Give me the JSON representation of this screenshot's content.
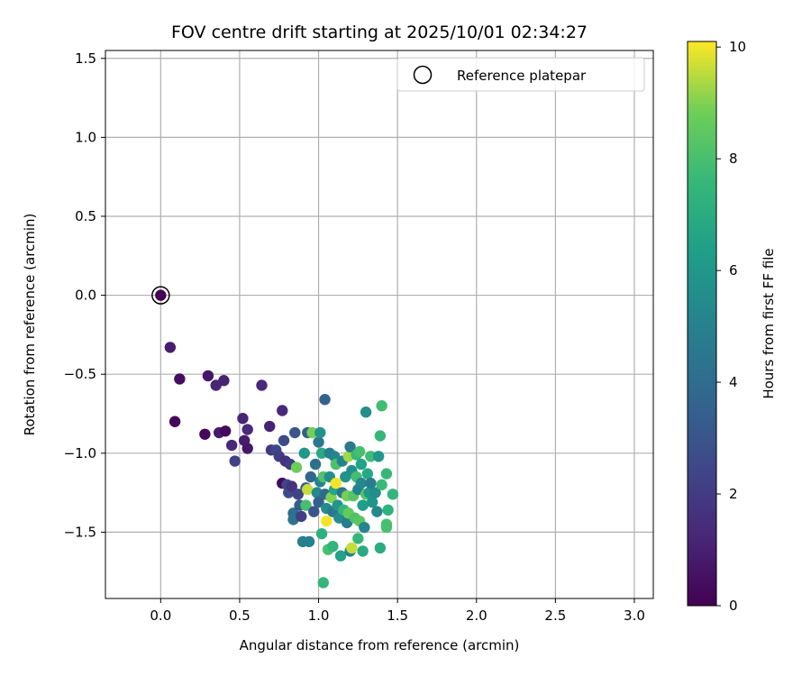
{
  "chart_data": {
    "type": "scatter",
    "title": "FOV centre drift starting at 2025/10/01 02:34:27",
    "xlabel": "Angular distance from reference (arcmin)",
    "ylabel": "Rotation from reference (arcmin)",
    "xlim": [
      -0.35,
      3.12
    ],
    "ylim": [
      -1.92,
      1.55
    ],
    "xticks": [
      0.0,
      0.5,
      1.0,
      1.5,
      2.0,
      2.5,
      3.0
    ],
    "xtick_labels": [
      "0.0",
      "0.5",
      "1.0",
      "1.5",
      "2.0",
      "2.5",
      "3.0"
    ],
    "yticks": [
      -1.5,
      -1.0,
      -0.5,
      0.0,
      0.5,
      1.0,
      1.5
    ],
    "ytick_labels": [
      "−1.5",
      "−1.0",
      "−0.5",
      "0.0",
      "0.5",
      "1.0",
      "1.5"
    ],
    "grid": true,
    "legend": {
      "position": "top-right",
      "entries": [
        "Reference platepar"
      ]
    },
    "colorbar": {
      "label": "Hours from first FF file",
      "range": [
        0,
        10.1
      ],
      "ticks": [
        0,
        2,
        4,
        6,
        8,
        10
      ],
      "tick_labels": [
        "0",
        "2",
        "4",
        "6",
        "8",
        "10"
      ],
      "colormap": "viridis"
    },
    "reference_point": {
      "x": 0.0,
      "y": 0.0,
      "hours": 0.0
    },
    "points": [
      [
        0.0,
        0.0,
        0.0
      ],
      [
        0.06,
        -0.33,
        0.9
      ],
      [
        0.09,
        -0.8,
        0.2
      ],
      [
        0.12,
        -0.53,
        0.4
      ],
      [
        0.28,
        -0.88,
        0.2
      ],
      [
        0.3,
        -0.51,
        0.7
      ],
      [
        0.35,
        -0.57,
        1.2
      ],
      [
        0.37,
        -0.87,
        0.8
      ],
      [
        0.4,
        -0.54,
        1.1
      ],
      [
        0.41,
        -0.86,
        0.3
      ],
      [
        0.45,
        -0.95,
        1.3
      ],
      [
        0.47,
        -1.05,
        2.2
      ],
      [
        0.52,
        -0.78,
        1.2
      ],
      [
        0.53,
        -0.92,
        0.9
      ],
      [
        0.55,
        -0.85,
        1.4
      ],
      [
        0.55,
        -0.97,
        0.7
      ],
      [
        0.64,
        -0.57,
        1.3
      ],
      [
        0.69,
        -0.83,
        1.1
      ],
      [
        0.7,
        -0.98,
        1.9
      ],
      [
        0.73,
        -0.98,
        2.5
      ],
      [
        0.75,
        -1.02,
        2.1
      ],
      [
        0.77,
        -0.73,
        1.3
      ],
      [
        0.77,
        -1.19,
        0.3
      ],
      [
        0.78,
        -0.92,
        2.6
      ],
      [
        0.79,
        -1.05,
        1.6
      ],
      [
        0.8,
        -1.2,
        2.4
      ],
      [
        0.81,
        -1.25,
        2.6
      ],
      [
        0.82,
        -1.07,
        2.0
      ],
      [
        0.83,
        -1.21,
        1.7
      ],
      [
        0.84,
        -1.38,
        4.1
      ],
      [
        0.84,
        -1.42,
        4.3
      ],
      [
        0.85,
        -0.87,
        3.0
      ],
      [
        0.86,
        -1.09,
        8.8
      ],
      [
        0.87,
        -1.26,
        2.3
      ],
      [
        0.88,
        -1.33,
        3.4
      ],
      [
        0.89,
        -1.4,
        2.1
      ],
      [
        0.9,
        -1.56,
        4.8
      ],
      [
        0.91,
        -1.0,
        6.0
      ],
      [
        0.92,
        -1.22,
        3.2
      ],
      [
        0.92,
        -1.33,
        8.0
      ],
      [
        0.93,
        -0.87,
        3.4
      ],
      [
        0.93,
        -1.23,
        9.6
      ],
      [
        0.94,
        -1.56,
        5.0
      ],
      [
        0.95,
        -1.15,
        3.7
      ],
      [
        0.96,
        -0.87,
        8.9
      ],
      [
        0.97,
        -1.37,
        3.0
      ],
      [
        0.98,
        -1.07,
        4.2
      ],
      [
        0.99,
        -1.25,
        5.4
      ],
      [
        1.0,
        -0.93,
        4.5
      ],
      [
        1.0,
        -1.31,
        3.6
      ],
      [
        1.01,
        -0.87,
        5.8
      ],
      [
        1.01,
        -1.18,
        5.0
      ],
      [
        1.02,
        -1.0,
        6.9
      ],
      [
        1.02,
        -1.51,
        7.2
      ],
      [
        1.03,
        -1.15,
        8.2
      ],
      [
        1.03,
        -1.82,
        7.5
      ],
      [
        1.04,
        -0.66,
        3.6
      ],
      [
        1.04,
        -1.26,
        3.9
      ],
      [
        1.05,
        -1.35,
        5.5
      ],
      [
        1.05,
        -1.43,
        10.0
      ],
      [
        1.06,
        -1.61,
        8.0
      ],
      [
        1.07,
        -1.0,
        4.9
      ],
      [
        1.07,
        -1.15,
        5.6
      ],
      [
        1.08,
        -1.28,
        9.0
      ],
      [
        1.09,
        -1.37,
        4.5
      ],
      [
        1.09,
        -1.59,
        7.4
      ],
      [
        1.1,
        -1.02,
        5.2
      ],
      [
        1.1,
        -1.23,
        6.7
      ],
      [
        1.11,
        -1.07,
        8.1
      ],
      [
        1.11,
        -1.19,
        10.0
      ],
      [
        1.12,
        -1.33,
        6.0
      ],
      [
        1.13,
        -1.41,
        5.5
      ],
      [
        1.14,
        -1.65,
        6.5
      ],
      [
        1.15,
        -1.05,
        5.1
      ],
      [
        1.15,
        -1.25,
        4.4
      ],
      [
        1.16,
        -1.36,
        7.5
      ],
      [
        1.17,
        -1.15,
        5.8
      ],
      [
        1.18,
        -1.27,
        8.9
      ],
      [
        1.18,
        -1.44,
        4.7
      ],
      [
        1.19,
        -1.02,
        9.3
      ],
      [
        1.19,
        -1.38,
        8.6
      ],
      [
        1.2,
        -0.96,
        4.6
      ],
      [
        1.2,
        -1.62,
        5.0
      ],
      [
        1.21,
        -1.11,
        5.7
      ],
      [
        1.21,
        -1.6,
        9.6
      ],
      [
        1.22,
        -1.27,
        8.3
      ],
      [
        1.23,
        -1.41,
        8.2
      ],
      [
        1.24,
        -1.01,
        7.6
      ],
      [
        1.24,
        -1.15,
        7.9
      ],
      [
        1.25,
        -1.23,
        5.0
      ],
      [
        1.25,
        -1.54,
        7.6
      ],
      [
        1.26,
        -0.99,
        8.0
      ],
      [
        1.26,
        -1.43,
        8.4
      ],
      [
        1.27,
        -1.07,
        6.5
      ],
      [
        1.27,
        -1.19,
        5.3
      ],
      [
        1.28,
        -1.33,
        6.3
      ],
      [
        1.28,
        -1.62,
        6.9
      ],
      [
        1.29,
        -1.47,
        5.2
      ],
      [
        1.3,
        -0.74,
        5.6
      ],
      [
        1.3,
        -1.26,
        8.3
      ],
      [
        1.31,
        -1.13,
        6.8
      ],
      [
        1.32,
        -1.25,
        6.0
      ],
      [
        1.33,
        -1.02,
        7.8
      ],
      [
        1.33,
        -1.19,
        4.8
      ],
      [
        1.34,
        -1.31,
        5.9
      ],
      [
        1.36,
        -1.25,
        5.5
      ],
      [
        1.37,
        -1.37,
        5.3
      ],
      [
        1.38,
        -1.02,
        6.0
      ],
      [
        1.39,
        -0.89,
        7.6
      ],
      [
        1.39,
        -1.6,
        7.0
      ],
      [
        1.4,
        -0.7,
        7.8
      ],
      [
        1.4,
        -1.2,
        7.7
      ],
      [
        1.43,
        -1.13,
        7.6
      ],
      [
        1.43,
        -1.45,
        8.0
      ],
      [
        1.43,
        -1.47,
        8.0
      ],
      [
        1.44,
        -1.36,
        7.3
      ],
      [
        1.47,
        -1.26,
        7.4
      ]
    ]
  }
}
